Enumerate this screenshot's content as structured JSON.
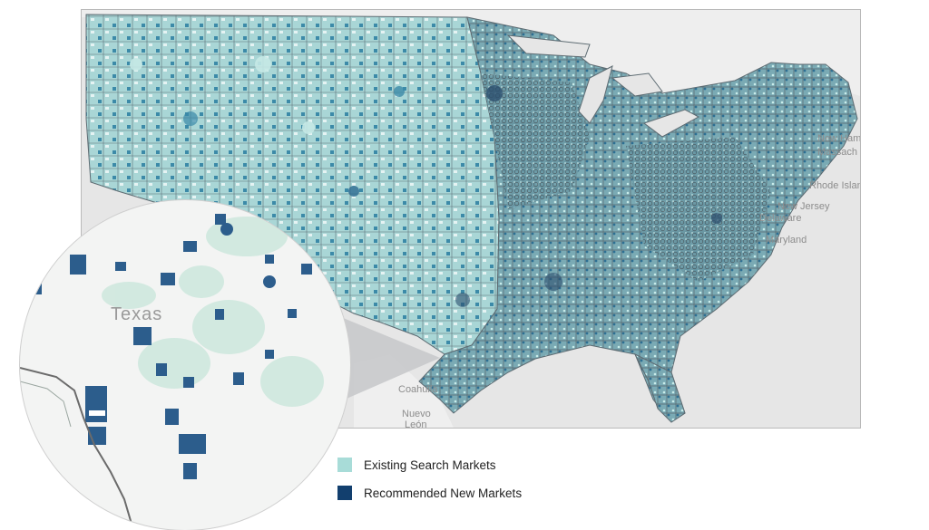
{
  "colors": {
    "existing": "#a8dcd8",
    "recommended": "#123f6e",
    "mid_teal": "#3f91ac",
    "land_base": "#8fb9c0",
    "outline": "#5d6b72",
    "water": "#e6e6e6"
  },
  "map_labels": {
    "new_hampshire": "New Ham",
    "massachusetts": "Massach",
    "rhode_island": "Rhode Islan",
    "new_jersey": "New Jersey",
    "delaware": "Delaware",
    "maryland": "Maryland",
    "coahuila": "Coahuila",
    "nuevo_leon_1": "Nuevo",
    "nuevo_leon_2": "León"
  },
  "inset": {
    "region_label": "Texas"
  },
  "legend": {
    "items": [
      {
        "label": "Existing Search Markets",
        "color": "#a8dcd8"
      },
      {
        "label": "Recommended New Markets",
        "color": "#123f6e"
      }
    ]
  }
}
